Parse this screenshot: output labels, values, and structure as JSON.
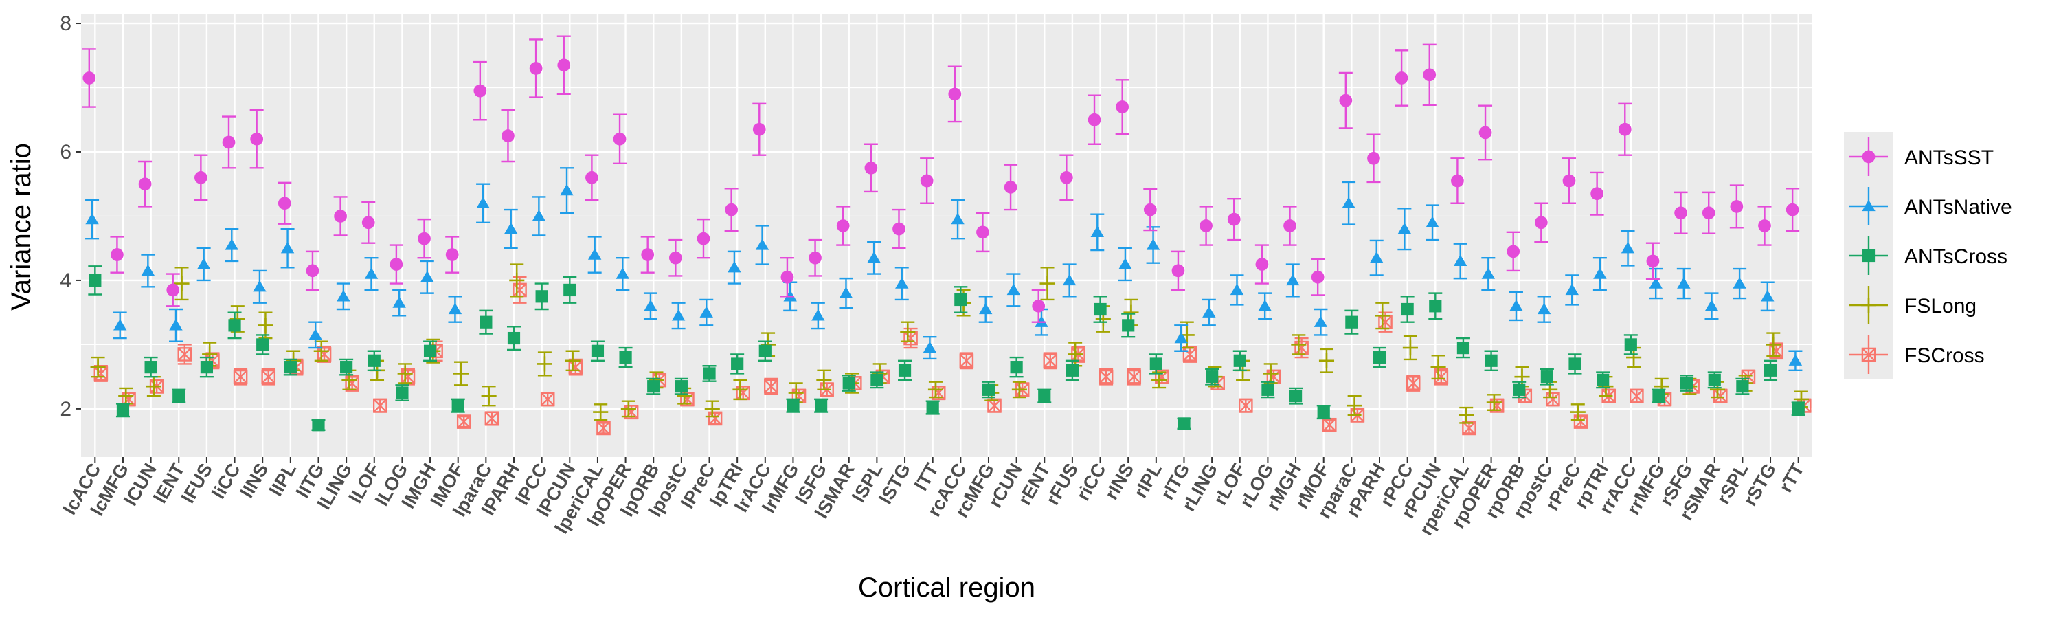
{
  "chart_data": {
    "type": "scatter",
    "title": "",
    "xlabel": "Cortical region",
    "ylabel": "Variance ratio",
    "ylim": [
      1.25,
      8.15
    ],
    "y_ticks": [
      2,
      4,
      6,
      8
    ],
    "grid": true,
    "legend_placement": "right",
    "categories": [
      "lcACC",
      "lcMFG",
      "lCUN",
      "lENT",
      "lFUS",
      "liCC",
      "lINS",
      "lIPL",
      "lITG",
      "lLING",
      "lLOF",
      "lLOG",
      "lMGH",
      "lMOF",
      "lparaC",
      "lPARH",
      "lPCC",
      "lPCUN",
      "lperiCAL",
      "lpOPER",
      "lpORB",
      "lpostC",
      "lPreC",
      "lpTRI",
      "lrACC",
      "lrMFG",
      "lSFG",
      "lSMAR",
      "lSPL",
      "lSTG",
      "lTT",
      "rcACC",
      "rcMFG",
      "rCUN",
      "rENT",
      "rFUS",
      "riCC",
      "rINS",
      "rIPL",
      "rITG",
      "rLING",
      "rLOF",
      "rLOG",
      "rMGH",
      "rMOF",
      "rparaC",
      "rPARH",
      "rPCC",
      "rPCUN",
      "rperiCAL",
      "rpOPER",
      "rpORB",
      "rpostC",
      "rPreC",
      "rpTRI",
      "rrACC",
      "rrMFG",
      "rSFG",
      "rSMAR",
      "rSPL",
      "rSTG",
      "rTT"
    ],
    "series": [
      {
        "name": "ANTsSST",
        "color": "#E44BD9",
        "marker": "circle",
        "values": [
          7.15,
          4.4,
          5.5,
          3.85,
          5.6,
          6.15,
          6.2,
          5.2,
          4.15,
          5.0,
          4.9,
          4.25,
          4.65,
          4.4,
          6.95,
          6.25,
          7.3,
          7.35,
          5.6,
          6.2,
          4.4,
          4.35,
          4.65,
          5.1,
          6.35,
          4.05,
          4.35,
          4.85,
          5.75,
          4.8,
          5.55,
          6.9,
          4.75,
          5.45,
          3.6,
          5.6,
          6.5,
          6.7,
          5.1,
          4.15,
          4.85,
          4.95,
          4.25,
          4.85,
          4.05,
          6.8,
          5.9,
          7.15,
          7.2,
          5.55,
          6.3,
          4.45,
          4.9,
          5.55,
          5.35,
          6.35,
          4.3,
          5.05,
          5.05,
          5.15,
          4.85,
          5.1
        ],
        "errors": [
          0.45,
          0.28,
          0.35,
          0.25,
          0.35,
          0.4,
          0.45,
          0.32,
          0.3,
          0.3,
          0.32,
          0.3,
          0.3,
          0.28,
          0.45,
          0.4,
          0.45,
          0.45,
          0.35,
          0.38,
          0.28,
          0.28,
          0.3,
          0.33,
          0.4,
          0.3,
          0.28,
          0.3,
          0.37,
          0.3,
          0.35,
          0.43,
          0.3,
          0.35,
          0.25,
          0.35,
          0.38,
          0.42,
          0.32,
          0.3,
          0.3,
          0.32,
          0.3,
          0.3,
          0.28,
          0.43,
          0.37,
          0.43,
          0.47,
          0.35,
          0.42,
          0.3,
          0.3,
          0.35,
          0.33,
          0.4,
          0.28,
          0.32,
          0.32,
          0.33,
          0.3,
          0.33
        ]
      },
      {
        "name": "ANTsNative",
        "color": "#1F9DE9",
        "marker": "triangle",
        "values": [
          4.95,
          3.3,
          4.15,
          3.3,
          4.25,
          4.55,
          3.9,
          4.5,
          3.15,
          3.75,
          4.1,
          3.65,
          4.05,
          3.55,
          5.2,
          4.8,
          5.0,
          5.4,
          4.4,
          4.1,
          3.6,
          3.45,
          3.5,
          4.2,
          4.55,
          3.75,
          3.45,
          3.8,
          4.35,
          3.95,
          2.95,
          4.95,
          3.55,
          3.85,
          3.35,
          4.0,
          4.75,
          4.25,
          4.55,
          3.1,
          3.5,
          3.85,
          3.6,
          4.0,
          3.35,
          5.2,
          4.35,
          4.8,
          4.9,
          4.3,
          4.1,
          3.6,
          3.55,
          3.85,
          4.1,
          4.5,
          3.95,
          3.95,
          3.6,
          3.95,
          3.75,
          2.75
        ],
        "errors": [
          0.3,
          0.2,
          0.25,
          0.25,
          0.25,
          0.25,
          0.25,
          0.3,
          0.2,
          0.2,
          0.25,
          0.2,
          0.25,
          0.2,
          0.3,
          0.3,
          0.3,
          0.35,
          0.28,
          0.25,
          0.2,
          0.2,
          0.2,
          0.25,
          0.3,
          0.22,
          0.2,
          0.23,
          0.25,
          0.25,
          0.17,
          0.3,
          0.2,
          0.25,
          0.2,
          0.25,
          0.28,
          0.25,
          0.28,
          0.2,
          0.2,
          0.23,
          0.2,
          0.25,
          0.2,
          0.33,
          0.27,
          0.32,
          0.27,
          0.27,
          0.25,
          0.22,
          0.2,
          0.23,
          0.25,
          0.27,
          0.23,
          0.23,
          0.2,
          0.23,
          0.22,
          0.15
        ]
      },
      {
        "name": "ANTsCross",
        "color": "#19A564",
        "marker": "square",
        "values": [
          4.0,
          1.98,
          2.65,
          2.2,
          2.65,
          3.3,
          3.0,
          2.65,
          1.75,
          2.65,
          2.75,
          2.25,
          2.9,
          2.05,
          3.35,
          3.1,
          3.75,
          3.85,
          2.9,
          2.8,
          2.35,
          2.35,
          2.55,
          2.7,
          2.9,
          2.05,
          2.05,
          2.4,
          2.45,
          2.6,
          2.02,
          3.7,
          2.3,
          2.65,
          2.2,
          2.6,
          3.55,
          3.3,
          2.7,
          1.77,
          2.5,
          2.75,
          2.3,
          2.2,
          1.95,
          3.35,
          2.8,
          3.55,
          3.6,
          2.95,
          2.75,
          2.3,
          2.5,
          2.7,
          2.45,
          3.0,
          2.2,
          2.4,
          2.45,
          2.35,
          2.6,
          2.0
        ],
        "errors": [
          0.22,
          0.1,
          0.15,
          0.1,
          0.15,
          0.2,
          0.15,
          0.12,
          0.08,
          0.12,
          0.15,
          0.12,
          0.15,
          0.1,
          0.18,
          0.18,
          0.2,
          0.2,
          0.15,
          0.15,
          0.12,
          0.12,
          0.12,
          0.15,
          0.15,
          0.1,
          0.1,
          0.12,
          0.12,
          0.15,
          0.1,
          0.2,
          0.12,
          0.15,
          0.1,
          0.15,
          0.2,
          0.18,
          0.15,
          0.08,
          0.12,
          0.15,
          0.12,
          0.12,
          0.1,
          0.18,
          0.15,
          0.2,
          0.2,
          0.15,
          0.15,
          0.12,
          0.12,
          0.15,
          0.12,
          0.15,
          0.1,
          0.12,
          0.12,
          0.12,
          0.15,
          0.1
        ]
      },
      {
        "name": "FSLong",
        "color": "#A3A500",
        "marker": "cross",
        "values": [
          2.65,
          2.2,
          2.35,
          3.95,
          2.85,
          3.4,
          3.3,
          2.75,
          2.9,
          2.45,
          2.6,
          2.55,
          2.9,
          2.55,
          2.2,
          4.0,
          2.7,
          2.75,
          1.95,
          2.0,
          2.45,
          2.2,
          2.0,
          2.3,
          3.0,
          2.25,
          2.45,
          2.4,
          2.55,
          3.2,
          2.3,
          3.65,
          2.25,
          2.3,
          3.95,
          2.85,
          3.4,
          3.5,
          2.45,
          3.15,
          2.5,
          2.6,
          2.55,
          3.0,
          2.75,
          2.05,
          3.45,
          2.95,
          2.65,
          1.9,
          2.1,
          2.5,
          2.3,
          1.95,
          2.35,
          2.8,
          2.35,
          2.35,
          2.3,
          2.4,
          3.0,
          2.15
        ],
        "errors": [
          0.15,
          0.12,
          0.15,
          0.25,
          0.18,
          0.2,
          0.2,
          0.15,
          0.15,
          0.15,
          0.15,
          0.15,
          0.18,
          0.18,
          0.15,
          0.25,
          0.18,
          0.15,
          0.12,
          0.12,
          0.12,
          0.12,
          0.12,
          0.15,
          0.18,
          0.15,
          0.15,
          0.15,
          0.15,
          0.15,
          0.12,
          0.2,
          0.12,
          0.12,
          0.25,
          0.18,
          0.2,
          0.2,
          0.12,
          0.2,
          0.15,
          0.15,
          0.15,
          0.15,
          0.18,
          0.15,
          0.2,
          0.18,
          0.18,
          0.12,
          0.12,
          0.15,
          0.12,
          0.12,
          0.15,
          0.15,
          0.12,
          0.12,
          0.12,
          0.12,
          0.18,
          0.12
        ]
      },
      {
        "name": "FSCross",
        "color": "#F8766D",
        "marker": "boxed-x",
        "values": [
          2.55,
          2.15,
          2.35,
          2.85,
          2.75,
          2.5,
          2.5,
          2.65,
          2.85,
          2.4,
          2.05,
          2.5,
          2.9,
          1.8,
          1.85,
          3.85,
          2.15,
          2.65,
          1.7,
          1.95,
          2.45,
          2.15,
          1.85,
          2.25,
          2.35,
          2.2,
          2.3,
          2.4,
          2.5,
          3.1,
          2.25,
          2.75,
          2.05,
          2.3,
          2.75,
          2.85,
          2.5,
          2.5,
          2.5,
          2.85,
          2.4,
          2.05,
          2.5,
          2.95,
          1.75,
          1.9,
          3.35,
          2.4,
          2.5,
          1.7,
          2.05,
          2.2,
          2.15,
          1.8,
          2.2,
          2.2,
          2.15,
          2.35,
          2.2,
          2.5,
          2.9,
          2.05
        ],
        "errors": [
          0.12,
          0.1,
          0.1,
          0.15,
          0.12,
          0.12,
          0.12,
          0.12,
          0.12,
          0.12,
          0.1,
          0.12,
          0.15,
          0.08,
          0.1,
          0.2,
          0.1,
          0.12,
          0.08,
          0.1,
          0.1,
          0.1,
          0.08,
          0.1,
          0.12,
          0.1,
          0.1,
          0.1,
          0.1,
          0.15,
          0.1,
          0.12,
          0.1,
          0.1,
          0.12,
          0.12,
          0.12,
          0.12,
          0.1,
          0.12,
          0.1,
          0.1,
          0.1,
          0.15,
          0.08,
          0.1,
          0.15,
          0.12,
          0.12,
          0.08,
          0.1,
          0.1,
          0.1,
          0.08,
          0.1,
          0.1,
          0.1,
          0.1,
          0.1,
          0.1,
          0.12,
          0.1
        ]
      }
    ]
  }
}
